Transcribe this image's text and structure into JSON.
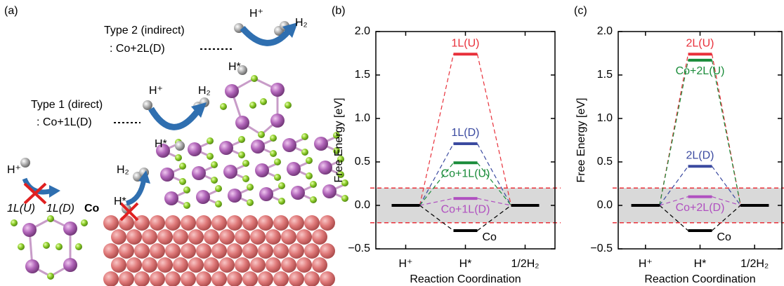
{
  "panel_a": {
    "label": "(a)",
    "type2_title": "Type 2 (indirect)",
    "type2_desc": ": Co+2L(D)",
    "type2_h_plus": "H⁺",
    "type2_h2": "H₂",
    "type2_h_star": "H*",
    "type1_title": "Type 1 (direct)",
    "type1_desc": ": Co+1L(D)",
    "type1_h_plus": "H⁺",
    "type1_h2": "H₂",
    "type1_h_star": "H*",
    "left_h_plus": "H⁺",
    "layer_u": "1L(U)",
    "layer_d": "1L(D)",
    "co": "Co",
    "co_h2": "H₂",
    "co_h_star": "H*"
  },
  "chart_data": [
    {
      "type": "line",
      "panel_label": "(b)",
      "xlabel": "Reaction Coordination",
      "ylabel": "Free Energy [eV]",
      "categories": [
        "H⁺",
        "H*",
        "1/2H₂"
      ],
      "ylim": [
        -0.5,
        2.0
      ],
      "yticks": [
        {
          "value": -0.5,
          "label": "−0.5"
        },
        {
          "value": 0,
          "label": "0.0"
        },
        {
          "value": 0.5,
          "label": "0.5"
        },
        {
          "value": 1,
          "label": "1.0"
        },
        {
          "value": 1.5,
          "label": "1.5"
        },
        {
          "value": 2,
          "label": "2.0"
        }
      ],
      "band": [
        -0.2,
        0.2
      ],
      "band_color": "#d9d9d9",
      "band_line_color": "#e8303a",
      "endpoint_color": "#000000",
      "series": [
        {
          "name": "1L(U)",
          "color": "#e8303a",
          "values": [
            0,
            1.74,
            0
          ]
        },
        {
          "name": "1L(D)",
          "color": "#3b4aa0",
          "values": [
            0,
            0.71,
            0
          ]
        },
        {
          "name": "Co+1L(U)",
          "color": "#1a8c3a",
          "values": [
            0,
            0.49,
            0
          ]
        },
        {
          "name": "Co+1L(D)",
          "color": "#b050c0",
          "values": [
            0,
            0.08,
            0
          ]
        },
        {
          "name": "Co",
          "color": "#000000",
          "values": [
            0,
            -0.29,
            0
          ]
        }
      ]
    },
    {
      "type": "line",
      "panel_label": "(c)",
      "xlabel": "Reaction Coordination",
      "ylabel": "Free Energy [eV]",
      "categories": [
        "H⁺",
        "H*",
        "1/2H₂"
      ],
      "ylim": [
        -0.5,
        2.0
      ],
      "yticks": [
        {
          "value": -0.5,
          "label": "−0.5"
        },
        {
          "value": 0,
          "label": "0.0"
        },
        {
          "value": 0.5,
          "label": "0.5"
        },
        {
          "value": 1,
          "label": "1.0"
        },
        {
          "value": 1.5,
          "label": "1.5"
        },
        {
          "value": 2,
          "label": "2.0"
        }
      ],
      "band": [
        -0.2,
        0.2
      ],
      "band_color": "#d9d9d9",
      "band_line_color": "#e8303a",
      "endpoint_color": "#000000",
      "series": [
        {
          "name": "2L(U)",
          "color": "#e8303a",
          "values": [
            0,
            1.74,
            0
          ]
        },
        {
          "name": "Co+2L(U)",
          "color": "#1a8c3a",
          "values": [
            0,
            1.67,
            0
          ]
        },
        {
          "name": "2L(D)",
          "color": "#3b4aa0",
          "values": [
            0,
            0.45,
            0
          ]
        },
        {
          "name": "Co+2L(D)",
          "color": "#b050c0",
          "values": [
            0,
            0.1,
            0
          ]
        },
        {
          "name": "Co",
          "color": "#000000",
          "values": [
            0,
            -0.29,
            0
          ]
        }
      ]
    }
  ]
}
